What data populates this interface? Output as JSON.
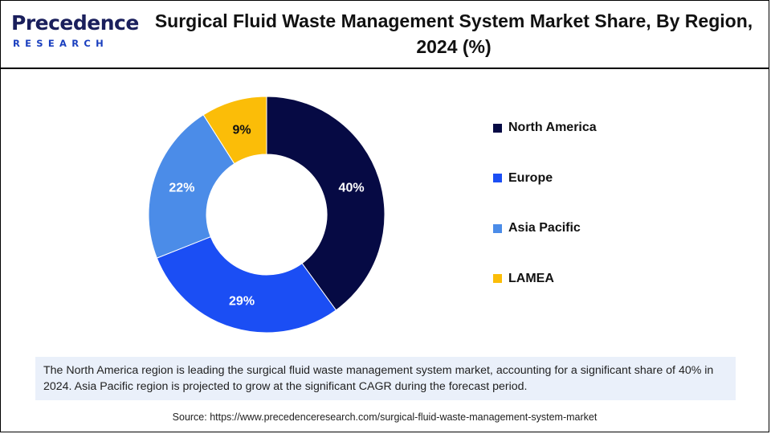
{
  "logo": {
    "brand_top": "Precedence",
    "brand_bottom": "RESEARCH"
  },
  "chart_data": {
    "type": "pie",
    "title": "Surgical Fluid Waste Management System Market Share, By Region, 2024 (%)",
    "categories": [
      "North America",
      "Europe",
      "Asia Pacific",
      "LAMEA"
    ],
    "values": [
      40,
      29,
      22,
      9
    ],
    "value_labels": [
      "40%",
      "29%",
      "22%",
      "9%"
    ],
    "colors": [
      "#060a44",
      "#1b4ef4",
      "#4b8ce8",
      "#fbbd08"
    ],
    "label_colors": [
      "#ffffff",
      "#ffffff",
      "#ffffff",
      "#111111"
    ],
    "donut": true,
    "legend_position": "right"
  },
  "note": "The North America region is leading the surgical fluid waste management system market, accounting for a significant share of 40% in 2024. Asia Pacific region is projected to grow at the significant CAGR during the forecast period.",
  "source": "Source: https://www.precedenceresearch.com/surgical-fluid-waste-management-system-market"
}
